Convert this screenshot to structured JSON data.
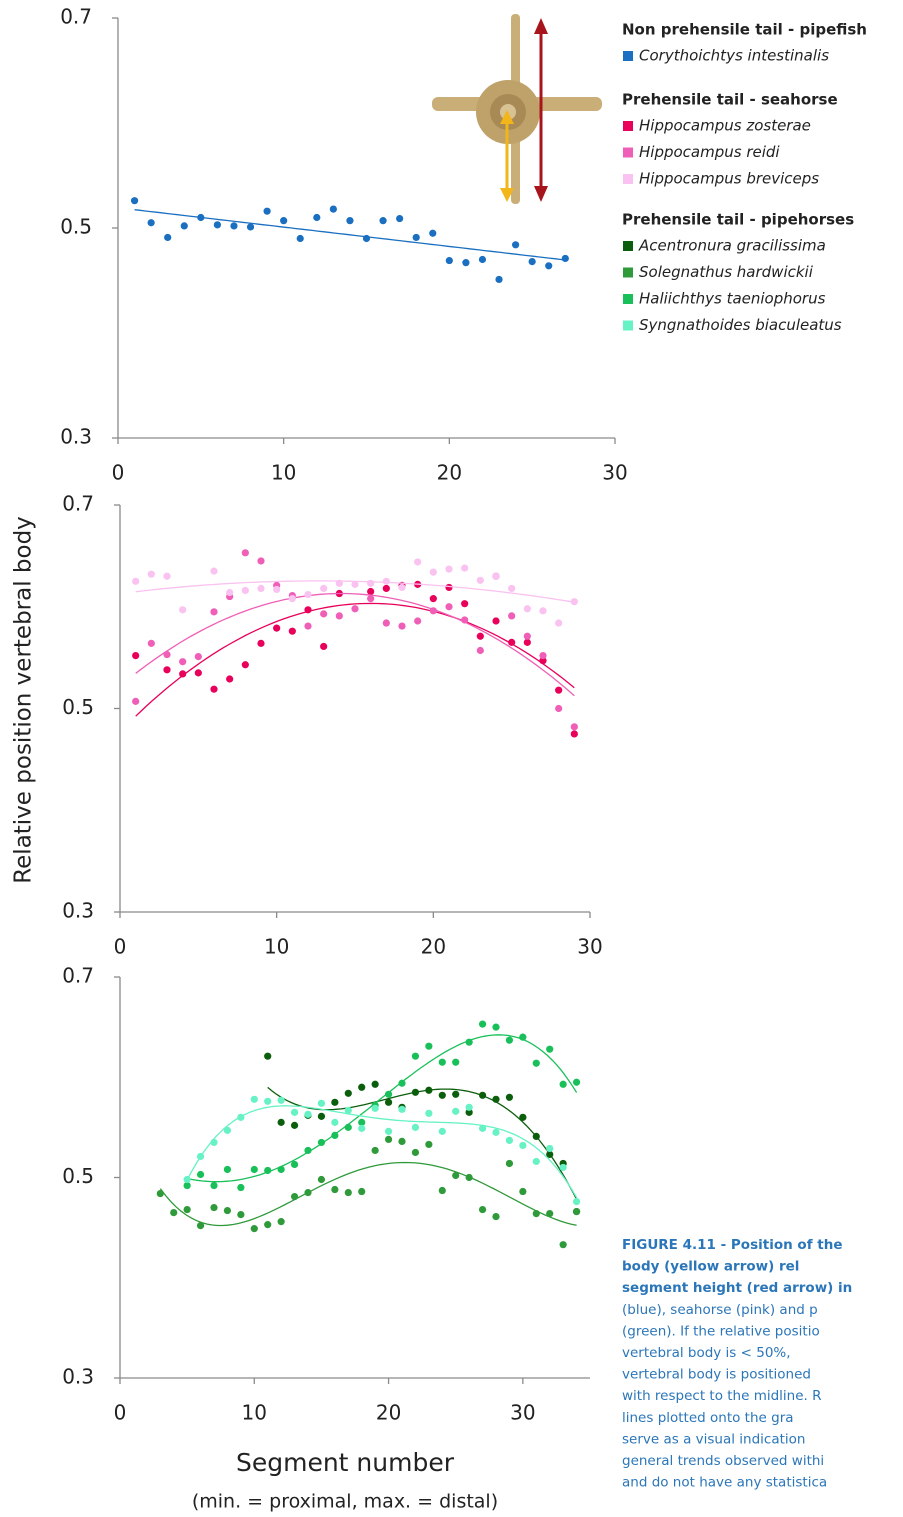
{
  "y_label": "Relative position vertebral body",
  "caption": [
    "FIGURE 4.11 - Position of the",
    "body (yellow arrow) rel",
    "segment height (red arrow) in",
    "(blue), seahorse (pink) and p",
    "(green). If the relative positio",
    "vertebral body is < 50%,",
    "vertebral body is positioned",
    "with respect to the midline. R",
    "lines plotted onto the gra",
    "serve as a visual indication",
    "general trends observed withi",
    "and do not have any statistica"
  ],
  "chart_data": [
    {
      "type": "scatter",
      "legend_title": "Non prehensile tail - pipefish",
      "trendline_order": 1,
      "xlim": [
        0,
        30
      ],
      "xticks": [
        0,
        10,
        20,
        30
      ],
      "ylim": [
        0.3,
        0.7
      ],
      "yticks": [
        0.3,
        0.5,
        0.7
      ],
      "series": [
        {
          "name": "Corythoichtys intestinalis",
          "color": "#1a6fc0",
          "x": [
            1,
            2,
            3,
            4,
            5,
            6,
            7,
            8,
            9,
            10,
            11,
            12,
            13,
            14,
            15,
            16,
            17,
            18,
            19,
            20,
            21,
            22,
            23,
            24,
            25,
            26,
            27
          ],
          "values": [
            0.526,
            0.505,
            0.491,
            0.502,
            0.51,
            0.503,
            0.502,
            0.501,
            0.516,
            0.507,
            0.49,
            0.51,
            0.518,
            0.507,
            0.49,
            0.507,
            0.509,
            0.491,
            0.495,
            0.469,
            0.467,
            0.47,
            0.451,
            0.484,
            0.468,
            0.464,
            0.471
          ]
        }
      ]
    },
    {
      "type": "scatter",
      "legend_title": "Prehensile tail - seahorse",
      "trendline_order": 2,
      "xlim": [
        0,
        30
      ],
      "xticks": [
        0,
        10,
        20,
        30
      ],
      "ylim": [
        0.3,
        0.7
      ],
      "yticks": [
        0.3,
        0.5,
        0.7
      ],
      "series": [
        {
          "name": "Hippocampus zosterae",
          "color": "#e8005a",
          "x": [
            1,
            3,
            4,
            5,
            6,
            7,
            8,
            9,
            10,
            11,
            12,
            13,
            14,
            16,
            17,
            18,
            19,
            20,
            21,
            22,
            23,
            24,
            25,
            26,
            27,
            28,
            29
          ],
          "values": [
            0.552,
            0.538,
            0.534,
            0.535,
            0.519,
            0.529,
            0.543,
            0.564,
            0.579,
            0.576,
            0.597,
            0.561,
            0.613,
            0.615,
            0.618,
            0.621,
            0.622,
            0.608,
            0.619,
            0.603,
            0.571,
            0.586,
            0.565,
            0.565,
            0.547,
            0.518,
            0.475
          ]
        },
        {
          "name": "Hippocampus reidi",
          "color": "#ef5fb7",
          "x": [
            1,
            2,
            3,
            4,
            5,
            6,
            7,
            8,
            9,
            10,
            11,
            12,
            13,
            14,
            15,
            16,
            17,
            18,
            19,
            20,
            21,
            22,
            23,
            24,
            25,
            26,
            27,
            28,
            29
          ],
          "values": [
            0.507,
            0.564,
            0.553,
            0.546,
            0.551,
            0.595,
            0.61,
            0.653,
            0.645,
            0.621,
            0.611,
            0.581,
            0.593,
            0.591,
            0.598,
            0.608,
            0.584,
            0.581,
            0.586,
            0.596,
            0.6,
            0.587,
            0.557,
            0.63,
            0.591,
            0.571,
            0.552,
            0.5,
            0.482
          ]
        },
        {
          "name": "Hippocampus breviceps",
          "color": "#f9c2f0",
          "x": [
            1,
            2,
            3,
            4,
            6,
            7,
            8,
            9,
            10,
            11,
            12,
            13,
            14,
            15,
            16,
            17,
            18,
            19,
            20,
            21,
            22,
            23,
            24,
            25,
            26,
            27,
            28,
            29
          ],
          "values": [
            0.625,
            0.632,
            0.63,
            0.597,
            0.635,
            0.614,
            0.616,
            0.618,
            0.617,
            0.608,
            0.612,
            0.618,
            0.623,
            0.622,
            0.623,
            0.625,
            0.619,
            0.644,
            0.634,
            0.637,
            0.638,
            0.626,
            0.63,
            0.618,
            0.598,
            0.596,
            0.584,
            0.605
          ]
        }
      ]
    },
    {
      "type": "scatter",
      "legend_title": "Prehensile tail - pipehorses",
      "trendline_order": 4,
      "xlim": [
        0,
        35
      ],
      "xticks": [
        0,
        10,
        20,
        30
      ],
      "ylim": [
        0.3,
        0.7
      ],
      "yticks": [
        0.3,
        0.5,
        0.7
      ],
      "x_label": "Segment number",
      "x_sublabel": "(min. = proximal, max. = distal)",
      "series": [
        {
          "name": "Acentronura gracilissima",
          "color": "#0b5e0b",
          "x": [
            11,
            12,
            13,
            14,
            15,
            16,
            17,
            18,
            19,
            20,
            21,
            22,
            23,
            24,
            25,
            26,
            27,
            28,
            29,
            30,
            31,
            32,
            33,
            34
          ],
          "values": [
            0.621,
            0.555,
            0.552,
            0.562,
            0.561,
            0.575,
            0.584,
            0.59,
            0.593,
            0.575,
            0.57,
            0.585,
            0.587,
            0.582,
            0.583,
            0.565,
            0.582,
            0.578,
            0.58,
            0.56,
            0.541,
            0.523,
            0.514,
            0.466
          ]
        },
        {
          "name": "Solegnathus hardwickii",
          "color": "#2f9a3a",
          "x": [
            3,
            4,
            5,
            6,
            7,
            8,
            9,
            10,
            11,
            12,
            13,
            14,
            15,
            16,
            17,
            18,
            19,
            20,
            21,
            22,
            23,
            24,
            25,
            26,
            27,
            28,
            29,
            30,
            31,
            32,
            33,
            34
          ],
          "values": [
            0.484,
            0.465,
            0.468,
            0.452,
            0.47,
            0.467,
            0.463,
            0.449,
            0.453,
            0.456,
            0.481,
            0.485,
            0.498,
            0.488,
            0.485,
            0.486,
            0.527,
            0.538,
            0.536,
            0.525,
            0.533,
            0.487,
            0.502,
            0.5,
            0.468,
            0.461,
            0.514,
            0.486,
            0.464,
            0.464,
            0.433,
            0.466
          ]
        },
        {
          "name": "Haliichthys taeniophorus",
          "color": "#19c05a",
          "x": [
            5,
            6,
            7,
            8,
            9,
            10,
            11,
            12,
            13,
            14,
            15,
            16,
            17,
            18,
            19,
            20,
            21,
            22,
            23,
            24,
            25,
            26,
            27,
            28,
            29,
            30,
            31,
            32,
            33,
            34
          ],
          "values": [
            0.492,
            0.503,
            0.492,
            0.508,
            0.49,
            0.508,
            0.507,
            0.508,
            0.513,
            0.527,
            0.535,
            0.542,
            0.55,
            0.555,
            0.572,
            0.583,
            0.594,
            0.621,
            0.631,
            0.615,
            0.615,
            0.635,
            0.653,
            0.65,
            0.637,
            0.64,
            0.614,
            0.628,
            0.593,
            0.595
          ]
        },
        {
          "name": "Syngnathoides biaculeatus",
          "color": "#66f2c4",
          "x": [
            5,
            6,
            7,
            8,
            9,
            10,
            11,
            12,
            13,
            14,
            15,
            16,
            17,
            18,
            19,
            20,
            21,
            22,
            23,
            24,
            25,
            26,
            27,
            28,
            29,
            30,
            31,
            32,
            33,
            34
          ],
          "values": [
            0.498,
            0.521,
            0.535,
            0.547,
            0.56,
            0.578,
            0.576,
            0.577,
            0.565,
            0.563,
            0.574,
            0.555,
            0.567,
            0.549,
            0.569,
            0.546,
            0.568,
            0.55,
            0.564,
            0.546,
            0.566,
            0.57,
            0.549,
            0.545,
            0.537,
            0.532,
            0.516,
            0.529,
            0.51,
            0.476
          ]
        }
      ]
    }
  ]
}
